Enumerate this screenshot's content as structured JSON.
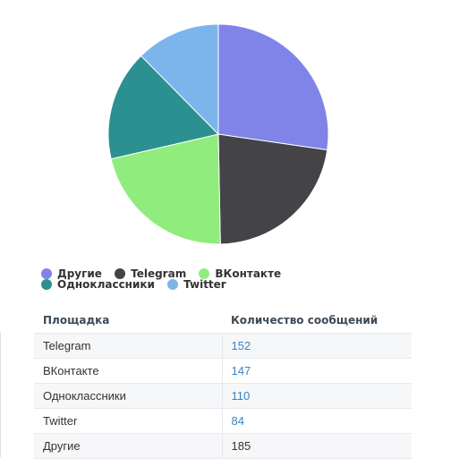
{
  "chart_data": {
    "type": "pie",
    "slices": [
      {
        "label": "Другие",
        "value": 185,
        "color": "#8084e8"
      },
      {
        "label": "Telegram",
        "value": 152,
        "color": "#434348"
      },
      {
        "label": "ВКонтакте",
        "value": 147,
        "color": "#90ed7d"
      },
      {
        "label": "Одноклассники",
        "value": 110,
        "color": "#2b908f"
      },
      {
        "label": "Twitter",
        "value": 84,
        "color": "#7cb5ec"
      }
    ],
    "legend_position": "bottom-left"
  },
  "legend": {
    "items": [
      {
        "label": "Другие",
        "color": "#8084e8"
      },
      {
        "label": "Telegram",
        "color": "#434348"
      },
      {
        "label": "ВКонтакте",
        "color": "#90ed7d"
      },
      {
        "label": "Одноклассники",
        "color": "#2b908f"
      },
      {
        "label": "Twitter",
        "color": "#7cb5ec"
      }
    ]
  },
  "table": {
    "headers": [
      "Площадка",
      "Количество сообщений"
    ],
    "rows": [
      {
        "platform": "Telegram",
        "count": "152"
      },
      {
        "platform": "ВКонтакте",
        "count": "147"
      },
      {
        "platform": "Одноклассники",
        "count": "110"
      },
      {
        "platform": "Twitter",
        "count": "84"
      },
      {
        "platform": "Другие",
        "count": "185"
      }
    ]
  }
}
